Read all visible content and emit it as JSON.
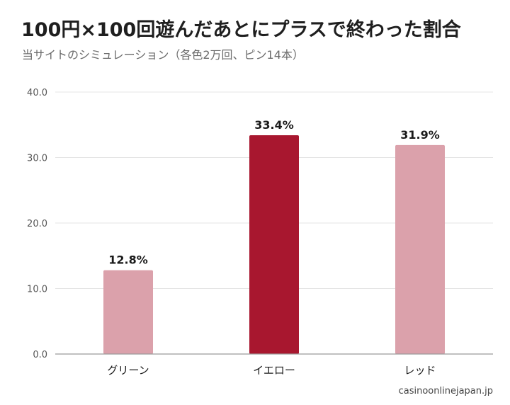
{
  "header": {
    "title": "100円×100回遊んだあとにプラスで終わった割合",
    "subtitle": "当サイトのシミュレーション（各色2万回、ピン14本）"
  },
  "footer": {
    "source": "casinoonlinejapan.jp"
  },
  "chart_data": {
    "type": "bar",
    "title": "100円×100回遊んだあとにプラスで終わった割合",
    "subtitle": "当サイトのシミュレーション（各色2万回、ピン14本）",
    "xlabel": "",
    "ylabel": "",
    "categories": [
      "グリーン",
      "イエロー",
      "レッド"
    ],
    "values": [
      12.8,
      33.4,
      31.9
    ],
    "value_labels": [
      "12.8%",
      "33.4%",
      "31.9%"
    ],
    "ylim": [
      0,
      40
    ],
    "yticks": [
      0,
      10,
      20,
      30,
      40
    ],
    "ytick_labels": [
      "0.0",
      "10.0",
      "20.0",
      "30.0",
      "40.0"
    ],
    "grid": true,
    "legend": "none",
    "bar_colors": [
      "#dba1ab",
      "#a8172f",
      "#dba1ab"
    ],
    "highlight_category": "イエロー"
  },
  "colors": {
    "highlight": "#a8172f",
    "muted": "#dba1ab",
    "grid": "#e4e4e4",
    "axis": "#9a9a9a"
  }
}
